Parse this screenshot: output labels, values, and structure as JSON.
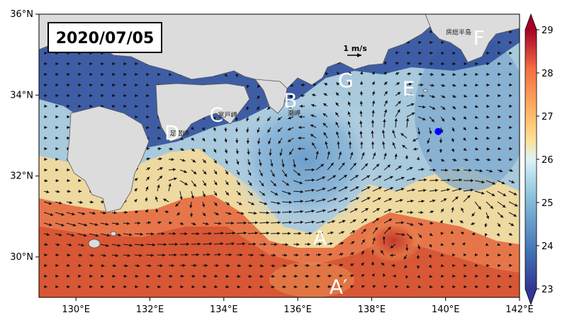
{
  "map": {
    "date": "2020/07/05",
    "lat_ticks": [
      {
        "value": 36,
        "label": "36°N"
      },
      {
        "value": 34,
        "label": "34°N"
      },
      {
        "value": 32,
        "label": "32°N"
      },
      {
        "value": 30,
        "label": "30°N"
      }
    ],
    "lon_ticks": [
      {
        "value": 130,
        "label": "130°E"
      },
      {
        "value": 132,
        "label": "132°E"
      },
      {
        "value": 134,
        "label": "134°E"
      },
      {
        "value": 136,
        "label": "136°E"
      },
      {
        "value": 138,
        "label": "138°E"
      },
      {
        "value": 140,
        "label": "140°E"
      },
      {
        "value": 142,
        "label": "142°E"
      }
    ],
    "region_labels": [
      {
        "text": "A",
        "lon": 136.6,
        "lat": 30.3
      },
      {
        "text": "A′",
        "lon": 137.1,
        "lat": 29.1
      },
      {
        "text": "B",
        "lon": 135.8,
        "lat": 33.7
      },
      {
        "text": "C",
        "lon": 133.8,
        "lat": 33.35
      },
      {
        "text": "D",
        "lon": 132.6,
        "lat": 32.9
      },
      {
        "text": "E",
        "lon": 139.0,
        "lat": 34.0
      },
      {
        "text": "F",
        "lon": 140.9,
        "lat": 35.25
      },
      {
        "text": "G",
        "lon": 137.3,
        "lat": 34.2
      }
    ],
    "place_labels": [
      {
        "text": "室戸岬",
        "lon": 134.1,
        "lat": 33.45
      },
      {
        "text": "潮岬",
        "lon": 135.9,
        "lat": 33.5
      },
      {
        "text": "足摺岬",
        "lon": 132.8,
        "lat": 33.0
      },
      {
        "text": "房総半島",
        "lon": 140.35,
        "lat": 35.5
      }
    ],
    "scale_arrow_label": "1 m/s",
    "station_marker": {
      "lon": 139.8,
      "lat": 33.1,
      "color": "#0000ff"
    },
    "land_color": "#dcdcdc"
  },
  "colorbar": {
    "min": 23,
    "max": 29,
    "ticks": [
      "29",
      "28",
      "27",
      "26",
      "25",
      "24",
      "23"
    ]
  }
}
